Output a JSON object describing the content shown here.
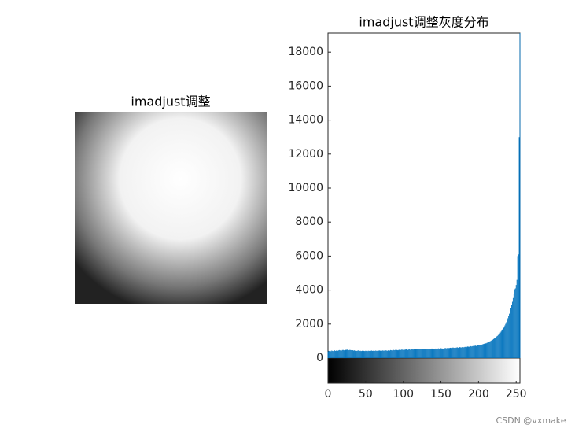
{
  "image": {
    "title": "imadjust调整"
  },
  "chart_data": {
    "type": "bar",
    "title": "imadjust调整灰度分布",
    "color": "#0072bd",
    "xlim": [
      0,
      255
    ],
    "xticks": [
      0,
      50,
      100,
      150,
      200,
      250
    ],
    "ylim": [
      0,
      19120
    ],
    "yticks": [
      0,
      2000,
      4000,
      6000,
      8000,
      10000,
      12000,
      14000,
      16000,
      18000
    ],
    "values": [
      380,
      420,
      410,
      430,
      400,
      440,
      420,
      410,
      430,
      450,
      420,
      440,
      460,
      430,
      450,
      470,
      450,
      460,
      440,
      470,
      480,
      460,
      450,
      470,
      490,
      480,
      500,
      470,
      460,
      480,
      470,
      460,
      450,
      460,
      440,
      450,
      430,
      440,
      420,
      430,
      450,
      440,
      420,
      430,
      410,
      420,
      440,
      430,
      420,
      410,
      430,
      420,
      440,
      410,
      430,
      420,
      410,
      430,
      440,
      420,
      430,
      410,
      420,
      440,
      430,
      420,
      440,
      430,
      450,
      440,
      430,
      420,
      440,
      450,
      430,
      440,
      460,
      450,
      440,
      430,
      450,
      460,
      440,
      470,
      460,
      450,
      470,
      480,
      460,
      470,
      490,
      480,
      470,
      460,
      480,
      490,
      470,
      480,
      500,
      490,
      480,
      470,
      490,
      500,
      510,
      490,
      480,
      500,
      510,
      490,
      500,
      520,
      510,
      500,
      520,
      530,
      510,
      520,
      540,
      530,
      520,
      510,
      530,
      540,
      520,
      530,
      550,
      540,
      530,
      520,
      540,
      550,
      530,
      540,
      520,
      530,
      550,
      540,
      560,
      550,
      540,
      530,
      550,
      560,
      540,
      550,
      560,
      570,
      550,
      560,
      580,
      570,
      560,
      550,
      570,
      580,
      590,
      570,
      580,
      600,
      590,
      580,
      600,
      610,
      590,
      600,
      620,
      610,
      600,
      590,
      610,
      620,
      630,
      610,
      620,
      640,
      630,
      620,
      640,
      650,
      630,
      640,
      660,
      650,
      640,
      670,
      680,
      660,
      670,
      690,
      700,
      680,
      700,
      710,
      690,
      720,
      730,
      710,
      740,
      750,
      760,
      740,
      770,
      790,
      780,
      800,
      820,
      830,
      850,
      870,
      860,
      890,
      910,
      930,
      950,
      980,
      1000,
      1030,
      1050,
      1080,
      1120,
      1150,
      1190,
      1230,
      1270,
      1300,
      1350,
      1400,
      1440,
      1500,
      1560,
      1620,
      1690,
      1760,
      1840,
      1920,
      2010,
      2110,
      2220,
      2340,
      2470,
      2610,
      2760,
      2930,
      3110,
      3310,
      3530,
      3780,
      4050,
      4100,
      4300,
      4600,
      6000,
      6100,
      13000,
      19120
    ]
  },
  "watermark": "CSDN @vxmake"
}
